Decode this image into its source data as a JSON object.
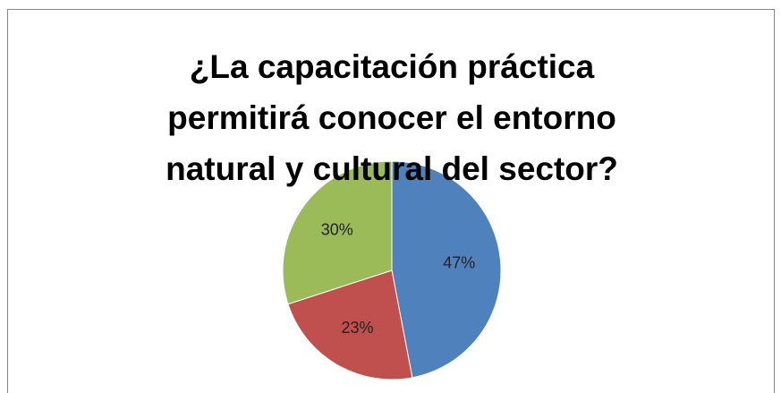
{
  "chart_data": {
    "type": "pie",
    "title_lines": [
      "¿La capacitación práctica",
      "permitirá conocer el entorno",
      "natural y cultural del sector?"
    ],
    "values": [
      47,
      23,
      30
    ],
    "value_labels": [
      "47%",
      "23%",
      "30%"
    ],
    "colors": [
      "#4f81bd",
      "#c0504d",
      "#9bbb59"
    ]
  }
}
